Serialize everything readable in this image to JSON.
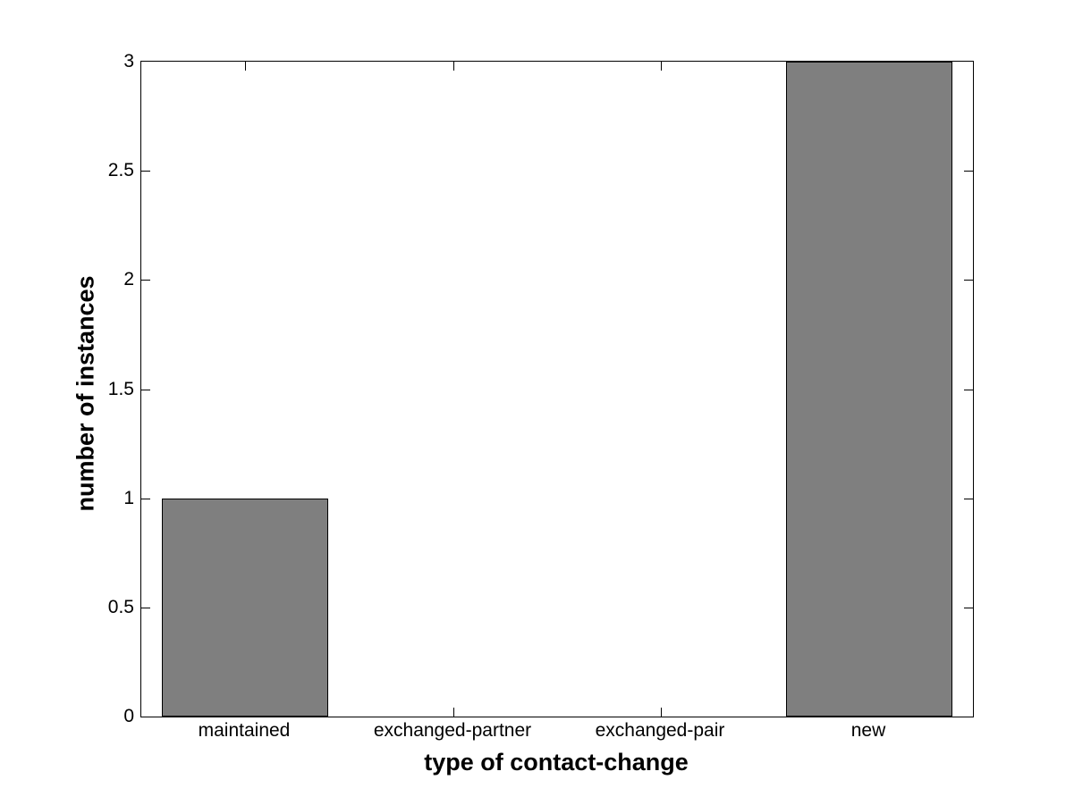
{
  "chart_data": {
    "type": "bar",
    "categories": [
      "maintained",
      "exchanged-partner",
      "exchanged-pair",
      "new"
    ],
    "values": [
      1,
      0,
      0,
      3
    ],
    "title": "",
    "xlabel": "type of contact-change",
    "ylabel": "number of instances",
    "ylim": [
      0,
      3
    ],
    "yticks": [
      0,
      0.5,
      1,
      1.5,
      2,
      2.5,
      3
    ],
    "ytick_labels": [
      "0",
      "0.5",
      "1",
      "1.5",
      "2",
      "2.5",
      "3"
    ],
    "bar_width_fraction": 0.8,
    "grid": false,
    "legend": null,
    "colors": {
      "bar_fill": "#7F7F7F",
      "bar_edge": "#000000",
      "axis": "#000000",
      "text": "#000000",
      "background": "#FFFFFF"
    }
  }
}
